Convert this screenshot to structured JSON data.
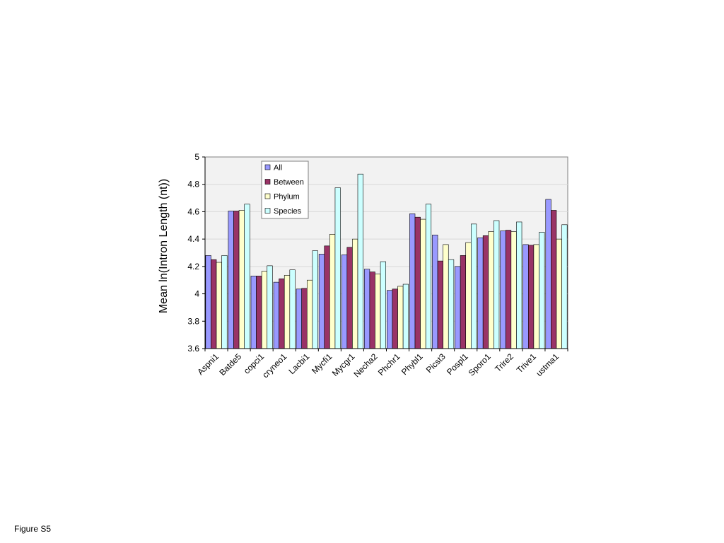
{
  "caption": "Figure S5",
  "chart_data": {
    "type": "bar",
    "title": "",
    "xlabel": "",
    "ylabel": "Mean ln(Intron Length (nt))",
    "ylim": [
      3.6,
      5.0
    ],
    "yticks": [
      3.6,
      3.8,
      4,
      4.2,
      4.4,
      4.6,
      4.8,
      5
    ],
    "grid": true,
    "legend": "top-center",
    "categories": [
      "Aspni1",
      "Batde5",
      "copci1",
      "cryneo1",
      "Lacbi1",
      "Mycfi1",
      "Mycgr1",
      "Necha2",
      "Phchr1",
      "Phybl1",
      "Picst3",
      "Pospl1",
      "Sporo1",
      "Trire2",
      "Trive1",
      "ustma1"
    ],
    "series": [
      {
        "name": "All",
        "color": "#9999ff",
        "values": [
          4.28,
          4.605,
          4.13,
          4.085,
          4.035,
          4.29,
          4.285,
          4.18,
          4.025,
          4.585,
          4.43,
          4.2,
          4.41,
          4.46,
          4.36,
          4.69
        ]
      },
      {
        "name": "Between",
        "color": "#993366",
        "values": [
          4.25,
          4.605,
          4.13,
          4.11,
          4.04,
          4.35,
          4.34,
          4.16,
          4.035,
          4.56,
          4.24,
          4.28,
          4.425,
          4.465,
          4.355,
          4.61
        ]
      },
      {
        "name": "Phylum",
        "color": "#ffffcc",
        "values": [
          4.23,
          4.61,
          4.165,
          4.135,
          4.1,
          4.435,
          4.4,
          4.145,
          4.055,
          4.545,
          4.36,
          4.375,
          4.455,
          4.455,
          4.36,
          4.4
        ]
      },
      {
        "name": "Species",
        "color": "#ccffff",
        "values": [
          4.28,
          4.655,
          4.205,
          4.175,
          4.315,
          4.775,
          4.875,
          4.235,
          4.07,
          4.655,
          4.25,
          4.51,
          4.535,
          4.525,
          4.45,
          4.505
        ]
      }
    ]
  }
}
